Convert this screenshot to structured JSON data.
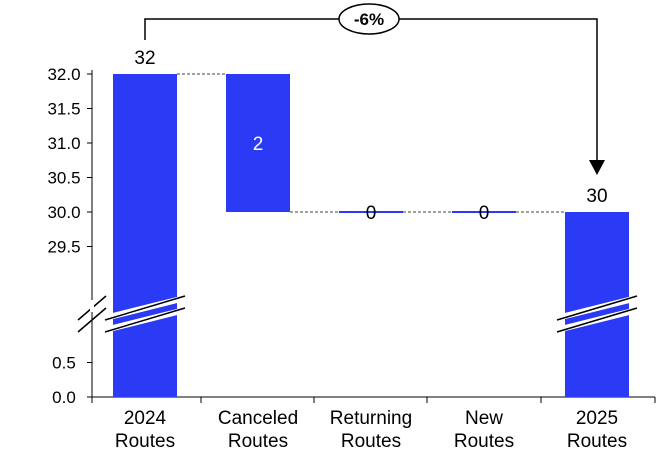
{
  "chart_data": {
    "type": "bar",
    "subtype": "waterfall",
    "title": "",
    "xlabel": "",
    "ylabel": "",
    "categories": [
      "2024\nRoutes",
      "Canceled\nRoutes",
      "Returning\nRoutes",
      "New\nRoutes",
      "2025\nRoutes"
    ],
    "bars": [
      {
        "category": "2024 Routes",
        "kind": "total",
        "start": 0,
        "end": 32,
        "label": "32",
        "label_position": "above"
      },
      {
        "category": "Canceled Routes",
        "kind": "decrease",
        "start": 32,
        "end": 30,
        "label": "2",
        "label_position": "inside"
      },
      {
        "category": "Returning Routes",
        "kind": "change",
        "start": 30,
        "end": 30,
        "label": "0",
        "label_position": "inside"
      },
      {
        "category": "New Routes",
        "kind": "change",
        "start": 30,
        "end": 30,
        "label": "0",
        "label_position": "inside"
      },
      {
        "category": "2025 Routes",
        "kind": "total",
        "start": 0,
        "end": 30,
        "label": "30",
        "label_position": "above"
      }
    ],
    "y_ticks_lower": [
      "0.0",
      "0.5"
    ],
    "y_ticks_upper": [
      "29.5",
      "30.0",
      "30.5",
      "31.0",
      "31.5",
      "32.0"
    ],
    "axis_break": {
      "from": 0.5,
      "to": 29.5
    },
    "change_annotation": {
      "from": "2024 Routes",
      "to": "2025 Routes",
      "label": "-6%"
    },
    "bar_color": "#2B3BF5",
    "connector_style": "dashed",
    "grid": false,
    "legend": "none"
  }
}
